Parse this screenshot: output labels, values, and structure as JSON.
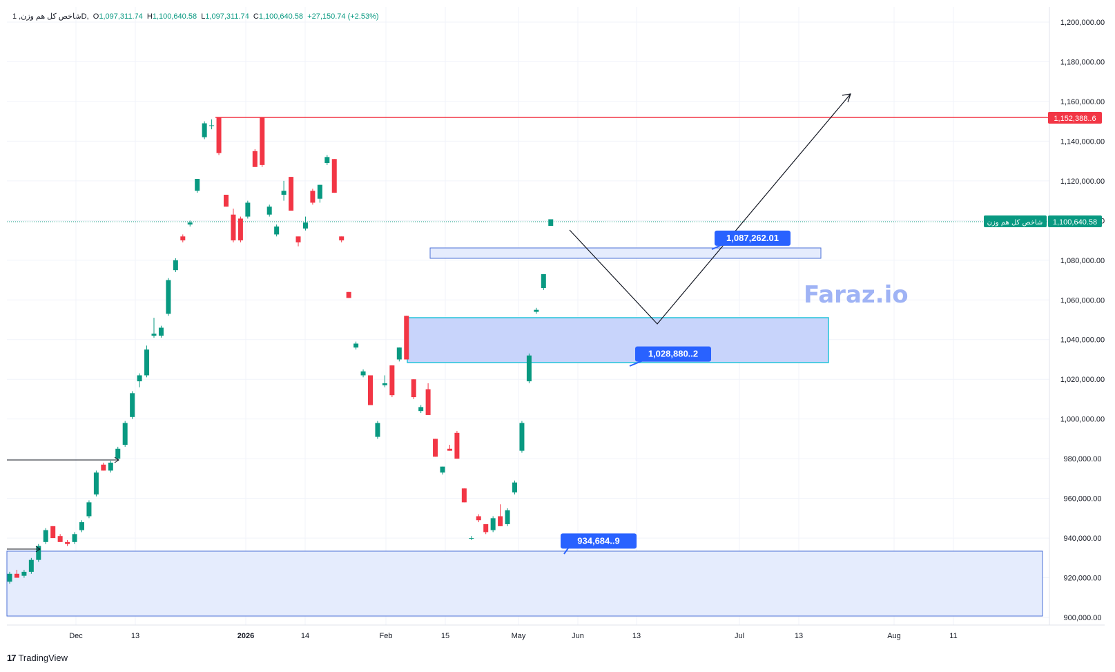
{
  "legend": {
    "symbol": "1 ,شاخص کل هم وزن",
    "interval": "D",
    "open_label": "O",
    "open": "1,097,311.74",
    "high_label": "H",
    "high": "1,100,640.58",
    "low_label": "L",
    "low": "1,097,311.74",
    "close_label": "C",
    "close": "1,100,640.58",
    "change": "+27,150.74 (+2.53%)"
  },
  "watermark": "Faraz.io",
  "branding": {
    "logo": "TradingView"
  },
  "price_labels": {
    "resistance": "1,152,388..6",
    "current_name": "شاخص کل هم وزن",
    "current": "1,100,640.58"
  },
  "callouts": [
    {
      "text": "1,087,262.01",
      "price": 1087262
    },
    {
      "text": "1,028,880..2",
      "price": 1028880
    },
    {
      "text": "934,684..9",
      "price": 934684
    }
  ],
  "colors": {
    "up": "#089981",
    "down": "#f23645",
    "callout": "#2962ff",
    "zone_fill": "#c8d4fb",
    "zone_border": "#2962ff"
  },
  "chart_data": {
    "type": "candlestick",
    "y_axis": {
      "range": [
        900000,
        1200000
      ],
      "ticks": [
        "1,200,000.00",
        "1,180,000.00",
        "1,160,000.00",
        "1,140,000.00",
        "1,120,000.00",
        "1,100,000.00",
        "1,080,000.00",
        "1,060,000.00",
        "1,040,000.00",
        "1,020,000.00",
        "1,000,000.00",
        "980,000.00",
        "960,000.00",
        "940,000.00",
        "920,000.00",
        "900,000.00"
      ]
    },
    "x_axis": {
      "ticks": [
        {
          "label": "Dec",
          "bold": false
        },
        {
          "label": "13",
          "bold": false
        },
        {
          "label": "2026",
          "bold": true
        },
        {
          "label": "14",
          "bold": false
        },
        {
          "label": "Feb",
          "bold": false
        },
        {
          "label": "15",
          "bold": false
        },
        {
          "label": "May",
          "bold": false
        },
        {
          "label": "Jun",
          "bold": false
        },
        {
          "label": "13",
          "bold": false
        },
        {
          "label": "Jul",
          "bold": false
        },
        {
          "label": "13",
          "bold": false
        },
        {
          "label": "Aug",
          "bold": false
        },
        {
          "label": "11",
          "bold": false
        }
      ]
    },
    "candles": [
      {
        "o": 918000,
        "h": 923000,
        "l": 917000,
        "c": 922000
      },
      {
        "o": 922000,
        "h": 924000,
        "l": 920000,
        "c": 920000
      },
      {
        "o": 921000,
        "h": 924000,
        "l": 920000,
        "c": 923000
      },
      {
        "o": 923000,
        "h": 930000,
        "l": 922000,
        "c": 929000
      },
      {
        "o": 929000,
        "h": 937000,
        "l": 928000,
        "c": 936000
      },
      {
        "o": 938000,
        "h": 945000,
        "l": 937000,
        "c": 944000
      },
      {
        "o": 946000,
        "h": 946000,
        "l": 940000,
        "c": 940000
      },
      {
        "o": 941000,
        "h": 942000,
        "l": 938000,
        "c": 938000
      },
      {
        "o": 938000,
        "h": 939000,
        "l": 936000,
        "c": 937000
      },
      {
        "o": 938000,
        "h": 943000,
        "l": 937000,
        "c": 942000
      },
      {
        "o": 944000,
        "h": 949000,
        "l": 943000,
        "c": 948000
      },
      {
        "o": 951000,
        "h": 959000,
        "l": 950000,
        "c": 958000
      },
      {
        "o": 962000,
        "h": 974000,
        "l": 961000,
        "c": 973000
      },
      {
        "o": 977000,
        "h": 978000,
        "l": 974000,
        "c": 974000
      },
      {
        "o": 974000,
        "h": 979000,
        "l": 973000,
        "c": 978000
      },
      {
        "o": 980000,
        "h": 986000,
        "l": 979000,
        "c": 985000
      },
      {
        "o": 987000,
        "h": 999000,
        "l": 986000,
        "c": 998000
      },
      {
        "o": 1001000,
        "h": 1014000,
        "l": 1000000,
        "c": 1013000
      },
      {
        "o": 1019000,
        "h": 1023000,
        "l": 1016000,
        "c": 1022000
      },
      {
        "o": 1022000,
        "h": 1037000,
        "l": 1021000,
        "c": 1035000
      },
      {
        "o": 1042000,
        "h": 1051000,
        "l": 1041000,
        "c": 1043000
      },
      {
        "o": 1042000,
        "h": 1047000,
        "l": 1041000,
        "c": 1046000
      },
      {
        "o": 1053000,
        "h": 1071000,
        "l": 1052000,
        "c": 1070000
      },
      {
        "o": 1075000,
        "h": 1081000,
        "l": 1074000,
        "c": 1080000
      },
      {
        "o": 1092000,
        "h": 1093000,
        "l": 1089000,
        "c": 1090000
      },
      {
        "o": 1098000,
        "h": 1100000,
        "l": 1097000,
        "c": 1099000
      },
      {
        "o": 1115000,
        "h": 1121000,
        "l": 1114000,
        "c": 1121000
      },
      {
        "o": 1142000,
        "h": 1150000,
        "l": 1141000,
        "c": 1149000
      },
      {
        "o": 1148000,
        "h": 1151000,
        "l": 1146000,
        "c": 1148000
      },
      {
        "o": 1152000,
        "h": 1152000,
        "l": 1133000,
        "c": 1134000
      },
      {
        "o": 1113000,
        "h": 1113000,
        "l": 1107000,
        "c": 1107000
      },
      {
        "o": 1103000,
        "h": 1106000,
        "l": 1089000,
        "c": 1090000
      },
      {
        "o": 1101000,
        "h": 1102000,
        "l": 1089000,
        "c": 1090000
      },
      {
        "o": 1102000,
        "h": 1110000,
        "l": 1101000,
        "c": 1109000
      },
      {
        "o": 1135000,
        "h": 1136000,
        "l": 1127000,
        "c": 1127000
      },
      {
        "o": 1152000,
        "h": 1152000,
        "l": 1127000,
        "c": 1128000
      },
      {
        "o": 1103000,
        "h": 1108000,
        "l": 1102000,
        "c": 1107000
      },
      {
        "o": 1093000,
        "h": 1098000,
        "l": 1092000,
        "c": 1097000
      },
      {
        "o": 1113000,
        "h": 1120000,
        "l": 1110000,
        "c": 1115000
      },
      {
        "o": 1122000,
        "h": 1122000,
        "l": 1105000,
        "c": 1105000
      },
      {
        "o": 1092000,
        "h": 1092000,
        "l": 1087000,
        "c": 1089000
      },
      {
        "o": 1096000,
        "h": 1102000,
        "l": 1095000,
        "c": 1099000
      },
      {
        "o": 1115000,
        "h": 1116000,
        "l": 1108000,
        "c": 1109000
      },
      {
        "o": 1111000,
        "h": 1118000,
        "l": 1109000,
        "c": 1118000
      },
      {
        "o": 1129000,
        "h": 1133000,
        "l": 1128000,
        "c": 1132000
      },
      {
        "o": 1131000,
        "h": 1131000,
        "l": 1114000,
        "c": 1114000
      },
      {
        "o": 1092000,
        "h": 1092000,
        "l": 1089000,
        "c": 1090000
      },
      {
        "o": 1064000,
        "h": 1064000,
        "l": 1061000,
        "c": 1061000
      },
      {
        "o": 1036000,
        "h": 1039000,
        "l": 1035000,
        "c": 1038000
      },
      {
        "o": 1022000,
        "h": 1025000,
        "l": 1021000,
        "c": 1024000
      },
      {
        "o": 1022000,
        "h": 1022000,
        "l": 1007000,
        "c": 1007000
      },
      {
        "o": 991000,
        "h": 999000,
        "l": 990000,
        "c": 998000
      },
      {
        "o": 1017000,
        "h": 1022000,
        "l": 1016000,
        "c": 1018000
      },
      {
        "o": 1027000,
        "h": 1027000,
        "l": 1011000,
        "c": 1012000
      },
      {
        "o": 1030000,
        "h": 1036000,
        "l": 1029000,
        "c": 1036000
      },
      {
        "o": 1052000,
        "h": 1052000,
        "l": 1030000,
        "c": 1030000
      },
      {
        "o": 1020000,
        "h": 1020000,
        "l": 1010000,
        "c": 1011000
      },
      {
        "o": 1004000,
        "h": 1007000,
        "l": 1003000,
        "c": 1006000
      },
      {
        "o": 1015000,
        "h": 1018000,
        "l": 1002000,
        "c": 1002000
      },
      {
        "o": 990000,
        "h": 990000,
        "l": 981000,
        "c": 981000
      },
      {
        "o": 973000,
        "h": 976000,
        "l": 972000,
        "c": 976000
      },
      {
        "o": 985000,
        "h": 987000,
        "l": 984000,
        "c": 984000
      },
      {
        "o": 993000,
        "h": 994000,
        "l": 980000,
        "c": 980000
      },
      {
        "o": 965000,
        "h": 965000,
        "l": 958000,
        "c": 958000
      },
      {
        "o": 940000,
        "h": 941000,
        "l": 939000,
        "c": 940000
      },
      {
        "o": 951000,
        "h": 952000,
        "l": 948000,
        "c": 949000
      },
      {
        "o": 947000,
        "h": 947000,
        "l": 942000,
        "c": 943000
      },
      {
        "o": 944000,
        "h": 951000,
        "l": 943000,
        "c": 950000
      },
      {
        "o": 951000,
        "h": 957000,
        "l": 946000,
        "c": 946000
      },
      {
        "o": 947000,
        "h": 955000,
        "l": 946000,
        "c": 954000
      },
      {
        "o": 963000,
        "h": 969000,
        "l": 962000,
        "c": 968000
      },
      {
        "o": 984000,
        "h": 999000,
        "l": 983000,
        "c": 998000
      },
      {
        "o": 1019000,
        "h": 1033000,
        "l": 1018000,
        "c": 1032000
      },
      {
        "o": 1054000,
        "h": 1056000,
        "l": 1053000,
        "c": 1055000
      },
      {
        "o": 1066000,
        "h": 1073000,
        "l": 1065000,
        "c": 1073000
      },
      {
        "o": 1097311.74,
        "h": 1100640.58,
        "l": 1097311.74,
        "c": 1100640.58
      }
    ]
  }
}
